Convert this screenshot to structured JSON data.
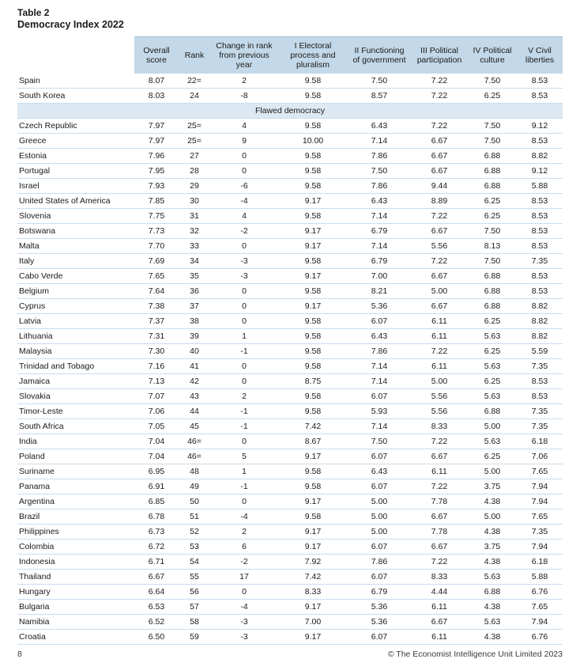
{
  "header": {
    "table_label": "Table 2",
    "title": "Democracy Index 2022"
  },
  "table": {
    "country_header": "",
    "columns": [
      "Overall score",
      "Rank",
      "Change in rank from previous year",
      "I Electoral process and pluralism",
      "II Functioning of government",
      "III Political participation",
      "IV Political culture",
      "V Civil liberties"
    ],
    "rows": [
      {
        "country": "Spain",
        "values": [
          "8.07",
          "22=",
          "2",
          "9.58",
          "7.50",
          "7.22",
          "7.50",
          "8.53"
        ]
      },
      {
        "country": "South Korea",
        "values": [
          "8.03",
          "24",
          "-8",
          "9.58",
          "8.57",
          "7.22",
          "6.25",
          "8.53"
        ]
      },
      {
        "section": "Flawed democracy"
      },
      {
        "country": "Czech Republic",
        "values": [
          "7.97",
          "25=",
          "4",
          "9.58",
          "6.43",
          "7.22",
          "7.50",
          "9.12"
        ]
      },
      {
        "country": "Greece",
        "values": [
          "7.97",
          "25=",
          "9",
          "10.00",
          "7.14",
          "6.67",
          "7.50",
          "8.53"
        ]
      },
      {
        "country": "Estonia",
        "values": [
          "7.96",
          "27",
          "0",
          "9.58",
          "7.86",
          "6.67",
          "6.88",
          "8.82"
        ]
      },
      {
        "country": "Portugal",
        "values": [
          "7.95",
          "28",
          "0",
          "9.58",
          "7.50",
          "6.67",
          "6.88",
          "9.12"
        ]
      },
      {
        "country": "Israel",
        "values": [
          "7.93",
          "29",
          "-6",
          "9.58",
          "7.86",
          "9.44",
          "6.88",
          "5.88"
        ]
      },
      {
        "country": "United States of America",
        "values": [
          "7.85",
          "30",
          "-4",
          "9.17",
          "6.43",
          "8.89",
          "6.25",
          "8.53"
        ]
      },
      {
        "country": "Slovenia",
        "values": [
          "7.75",
          "31",
          "4",
          "9.58",
          "7.14",
          "7.22",
          "6.25",
          "8.53"
        ]
      },
      {
        "country": "Botswana",
        "values": [
          "7.73",
          "32",
          "-2",
          "9.17",
          "6.79",
          "6.67",
          "7.50",
          "8.53"
        ]
      },
      {
        "country": "Malta",
        "values": [
          "7.70",
          "33",
          "0",
          "9.17",
          "7.14",
          "5.56",
          "8.13",
          "8.53"
        ]
      },
      {
        "country": "Italy",
        "values": [
          "7.69",
          "34",
          "-3",
          "9.58",
          "6.79",
          "7.22",
          "7.50",
          "7.35"
        ]
      },
      {
        "country": "Cabo Verde",
        "values": [
          "7.65",
          "35",
          "-3",
          "9.17",
          "7.00",
          "6.67",
          "6.88",
          "8.53"
        ]
      },
      {
        "country": "Belgium",
        "values": [
          "7.64",
          "36",
          "0",
          "9.58",
          "8.21",
          "5.00",
          "6.88",
          "8.53"
        ]
      },
      {
        "country": "Cyprus",
        "values": [
          "7.38",
          "37",
          "0",
          "9.17",
          "5.36",
          "6.67",
          "6.88",
          "8.82"
        ]
      },
      {
        "country": "Latvia",
        "values": [
          "7.37",
          "38",
          "0",
          "9.58",
          "6.07",
          "6.11",
          "6.25",
          "8.82"
        ]
      },
      {
        "country": "Lithuania",
        "values": [
          "7.31",
          "39",
          "1",
          "9.58",
          "6.43",
          "6.11",
          "5.63",
          "8.82"
        ]
      },
      {
        "country": "Malaysia",
        "values": [
          "7.30",
          "40",
          "-1",
          "9.58",
          "7.86",
          "7.22",
          "6.25",
          "5.59"
        ]
      },
      {
        "country": "Trinidad and Tobago",
        "values": [
          "7.16",
          "41",
          "0",
          "9.58",
          "7.14",
          "6.11",
          "5.63",
          "7.35"
        ]
      },
      {
        "country": "Jamaica",
        "values": [
          "7.13",
          "42",
          "0",
          "8.75",
          "7.14",
          "5.00",
          "6.25",
          "8.53"
        ]
      },
      {
        "country": "Slovakia",
        "values": [
          "7.07",
          "43",
          "2",
          "9.58",
          "6.07",
          "5.56",
          "5.63",
          "8.53"
        ]
      },
      {
        "country": "Timor-Leste",
        "values": [
          "7.06",
          "44",
          "-1",
          "9.58",
          "5.93",
          "5.56",
          "6.88",
          "7.35"
        ]
      },
      {
        "country": "South Africa",
        "values": [
          "7.05",
          "45",
          "-1",
          "7.42",
          "7.14",
          "8.33",
          "5.00",
          "7.35"
        ]
      },
      {
        "country": "India",
        "values": [
          "7.04",
          "46=",
          "0",
          "8.67",
          "7.50",
          "7.22",
          "5.63",
          "6.18"
        ]
      },
      {
        "country": "Poland",
        "values": [
          "7.04",
          "46=",
          "5",
          "9.17",
          "6.07",
          "6.67",
          "6.25",
          "7.06"
        ]
      },
      {
        "country": "Suriname",
        "values": [
          "6.95",
          "48",
          "1",
          "9.58",
          "6.43",
          "6.11",
          "5.00",
          "7.65"
        ]
      },
      {
        "country": "Panama",
        "values": [
          "6.91",
          "49",
          "-1",
          "9.58",
          "6.07",
          "7.22",
          "3.75",
          "7.94"
        ]
      },
      {
        "country": "Argentina",
        "values": [
          "6.85",
          "50",
          "0",
          "9.17",
          "5.00",
          "7.78",
          "4.38",
          "7.94"
        ]
      },
      {
        "country": "Brazil",
        "values": [
          "6.78",
          "51",
          "-4",
          "9.58",
          "5.00",
          "6.67",
          "5.00",
          "7.65"
        ]
      },
      {
        "country": "Philippines",
        "values": [
          "6.73",
          "52",
          "2",
          "9.17",
          "5.00",
          "7.78",
          "4.38",
          "7.35"
        ]
      },
      {
        "country": "Colombia",
        "values": [
          "6.72",
          "53",
          "6",
          "9.17",
          "6.07",
          "6.67",
          "3.75",
          "7.94"
        ]
      },
      {
        "country": "Indonesia",
        "values": [
          "6.71",
          "54",
          "-2",
          "7.92",
          "7.86",
          "7.22",
          "4.38",
          "6.18"
        ]
      },
      {
        "country": "Thailand",
        "values": [
          "6.67",
          "55",
          "17",
          "7.42",
          "6.07",
          "8.33",
          "5.63",
          "5.88"
        ]
      },
      {
        "country": "Hungary",
        "values": [
          "6.64",
          "56",
          "0",
          "8.33",
          "6.79",
          "4.44",
          "6.88",
          "6.76"
        ]
      },
      {
        "country": "Bulgaria",
        "values": [
          "6.53",
          "57",
          "-4",
          "9.17",
          "5.36",
          "6.11",
          "4.38",
          "7.65"
        ]
      },
      {
        "country": "Namibia",
        "values": [
          "6.52",
          "58",
          "-3",
          "7.00",
          "5.36",
          "6.67",
          "5.63",
          "7.94"
        ]
      },
      {
        "country": "Croatia",
        "values": [
          "6.50",
          "59",
          "-3",
          "9.17",
          "6.07",
          "6.11",
          "4.38",
          "6.76"
        ]
      }
    ]
  },
  "footer": {
    "page_number": "8",
    "copyright": "© The Economist Intelligence Unit Limited 2023"
  },
  "colors": {
    "header_bg": "#c3d8e8",
    "section_bg": "#dce9f3",
    "row_line": "#cadded"
  }
}
